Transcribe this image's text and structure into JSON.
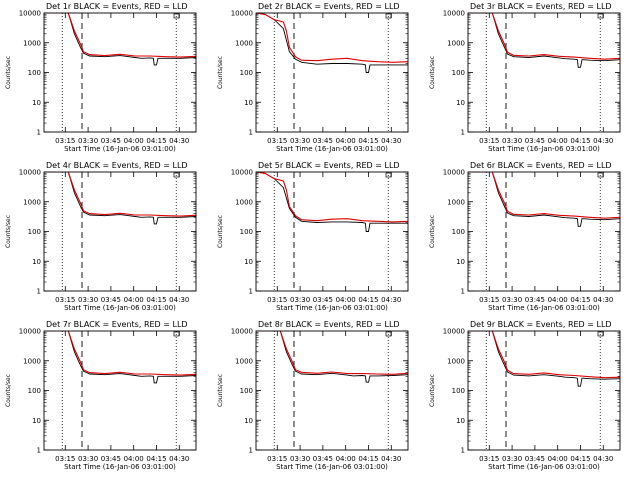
{
  "figure": {
    "shared_xlabel": "Start Time (16-Jan-06 03:01:00)",
    "shared_ylabel": "Counts/sec",
    "x_tick_labels": [
      "03:15",
      "03:30",
      "03:45",
      "04:00",
      "04:15",
      "04:30"
    ],
    "y_tick_labels": [
      "1",
      "10",
      "100",
      "1000",
      "10000"
    ],
    "colors": {
      "events": "#000000",
      "lld": "#e00000",
      "axes": "#000000"
    }
  },
  "chart_data": [
    {
      "type": "line",
      "title": "Det 1r BLACK = Events, RED = LLD",
      "x_unit": "minutes since 03:01",
      "xlim": [
        0,
        100
      ],
      "ylim": [
        1,
        10000
      ],
      "y_scale": "log",
      "x_ticks": [
        14,
        29,
        44,
        59,
        74,
        89
      ],
      "x_tick_labels": [
        "03:15",
        "03:30",
        "03:45",
        "04:00",
        "04:15",
        "04:30"
      ],
      "vlines_dotted": [
        12,
        87
      ],
      "vlines_dashed": [
        25
      ],
      "series": [
        {
          "color": "#000000",
          "x": [
            0,
            10,
            16,
            20,
            24,
            26,
            30,
            40,
            50,
            60,
            64,
            70,
            72,
            72.5,
            74,
            75,
            76,
            80,
            90,
            100
          ],
          "y": [
            10000,
            10000,
            10000,
            2000,
            700,
            450,
            360,
            340,
            370,
            320,
            300,
            310,
            300,
            180,
            180,
            300,
            300,
            300,
            300,
            320
          ]
        },
        {
          "color": "#e00000",
          "x": [
            0,
            10,
            16,
            20,
            24,
            26,
            30,
            40,
            50,
            60,
            70,
            80,
            90,
            100
          ],
          "y": [
            10000,
            10000,
            10000,
            2500,
            900,
            500,
            400,
            370,
            410,
            360,
            360,
            340,
            330,
            350
          ]
        }
      ]
    },
    {
      "type": "line",
      "title": "Det 2r BLACK = Events, RED = LLD",
      "x_unit": "minutes since 03:01",
      "xlim": [
        0,
        100
      ],
      "ylim": [
        1,
        10000
      ],
      "y_scale": "log",
      "x_ticks": [
        14,
        29,
        44,
        59,
        74,
        89
      ],
      "x_tick_labels": [
        "03:15",
        "03:30",
        "03:45",
        "04:00",
        "04:15",
        "04:30"
      ],
      "vlines_dotted": [
        12,
        87
      ],
      "vlines_dashed": [
        25
      ],
      "series": [
        {
          "color": "#000000",
          "x": [
            0,
            6,
            12,
            18,
            22,
            26,
            30,
            40,
            50,
            60,
            70,
            72,
            72.5,
            74,
            75,
            76,
            80,
            90,
            100
          ],
          "y": [
            10000,
            9000,
            6000,
            3000,
            500,
            280,
            220,
            190,
            200,
            200,
            190,
            180,
            100,
            100,
            180,
            180,
            180,
            180,
            180
          ]
        },
        {
          "color": "#e00000",
          "x": [
            0,
            6,
            12,
            18,
            20,
            22,
            26,
            30,
            40,
            50,
            60,
            70,
            80,
            90,
            100
          ],
          "y": [
            10000,
            9000,
            6000,
            5000,
            2500,
            700,
            340,
            260,
            250,
            280,
            300,
            250,
            230,
            220,
            230
          ]
        }
      ]
    },
    {
      "type": "line",
      "title": "Det 3r BLACK = Events, RED = LLD",
      "x_unit": "minutes since 03:01",
      "xlim": [
        0,
        100
      ],
      "ylim": [
        1,
        10000
      ],
      "y_scale": "log",
      "x_ticks": [
        14,
        29,
        44,
        59,
        74,
        89
      ],
      "x_tick_labels": [
        "03:15",
        "03:30",
        "03:45",
        "04:00",
        "04:15",
        "04:30"
      ],
      "vlines_dotted": [
        12,
        87
      ],
      "vlines_dashed": [
        25
      ],
      "series": [
        {
          "color": "#000000",
          "x": [
            0,
            10,
            16,
            20,
            24,
            26,
            30,
            40,
            50,
            60,
            64,
            70,
            72,
            72.5,
            74,
            75,
            76,
            80,
            90,
            100
          ],
          "y": [
            10000,
            10000,
            10000,
            2000,
            700,
            420,
            340,
            320,
            360,
            310,
            290,
            280,
            270,
            150,
            150,
            270,
            270,
            260,
            250,
            270
          ]
        },
        {
          "color": "#e00000",
          "x": [
            0,
            10,
            16,
            20,
            24,
            26,
            30,
            40,
            50,
            60,
            70,
            80,
            90,
            100
          ],
          "y": [
            10000,
            10000,
            10000,
            2500,
            900,
            480,
            380,
            360,
            400,
            350,
            330,
            300,
            280,
            300
          ]
        }
      ]
    },
    {
      "type": "line",
      "title": "Det 4r BLACK = Events, RED = LLD",
      "x_unit": "minutes since 03:01",
      "xlim": [
        0,
        100
      ],
      "ylim": [
        1,
        10000
      ],
      "y_scale": "log",
      "x_ticks": [
        14,
        29,
        44,
        59,
        74,
        89
      ],
      "x_tick_labels": [
        "03:15",
        "03:30",
        "03:45",
        "04:00",
        "04:15",
        "04:30"
      ],
      "vlines_dotted": [
        12,
        87
      ],
      "vlines_dashed": [
        25
      ],
      "series": [
        {
          "color": "#000000",
          "x": [
            0,
            10,
            16,
            20,
            24,
            26,
            30,
            40,
            50,
            60,
            64,
            70,
            72,
            72.5,
            74,
            75,
            76,
            80,
            90,
            100
          ],
          "y": [
            10000,
            10000,
            10000,
            2000,
            700,
            450,
            360,
            340,
            370,
            320,
            300,
            310,
            300,
            180,
            180,
            300,
            300,
            300,
            300,
            320
          ]
        },
        {
          "color": "#e00000",
          "x": [
            0,
            10,
            16,
            20,
            24,
            26,
            30,
            40,
            50,
            60,
            70,
            80,
            90,
            100
          ],
          "y": [
            10000,
            10000,
            10000,
            2500,
            900,
            500,
            400,
            370,
            410,
            360,
            360,
            340,
            330,
            350
          ]
        }
      ]
    },
    {
      "type": "line",
      "title": "Det 5r BLACK = Events, RED = LLD",
      "x_unit": "minutes since 03:01",
      "xlim": [
        0,
        100
      ],
      "ylim": [
        1,
        10000
      ],
      "y_scale": "log",
      "x_ticks": [
        14,
        29,
        44,
        59,
        74,
        89
      ],
      "x_tick_labels": [
        "03:15",
        "03:30",
        "03:45",
        "04:00",
        "04:15",
        "04:30"
      ],
      "vlines_dotted": [
        12,
        87
      ],
      "vlines_dashed": [
        25
      ],
      "series": [
        {
          "color": "#000000",
          "x": [
            0,
            6,
            12,
            18,
            22,
            26,
            30,
            40,
            50,
            60,
            70,
            72,
            72.5,
            74,
            75,
            76,
            80,
            90,
            100
          ],
          "y": [
            10000,
            9000,
            6000,
            3000,
            600,
            300,
            220,
            200,
            210,
            210,
            200,
            190,
            100,
            100,
            190,
            190,
            190,
            190,
            190
          ]
        },
        {
          "color": "#e00000",
          "x": [
            0,
            6,
            12,
            18,
            20,
            22,
            26,
            30,
            40,
            50,
            60,
            70,
            80,
            90,
            100
          ],
          "y": [
            10000,
            9000,
            6000,
            5000,
            2500,
            700,
            340,
            250,
            230,
            260,
            270,
            230,
            220,
            210,
            220
          ]
        }
      ]
    },
    {
      "type": "line",
      "title": "Det 6r BLACK = Events, RED = LLD",
      "x_unit": "minutes since 03:01",
      "xlim": [
        0,
        100
      ],
      "ylim": [
        1,
        10000
      ],
      "y_scale": "log",
      "x_ticks": [
        14,
        29,
        44,
        59,
        74,
        89
      ],
      "x_tick_labels": [
        "03:15",
        "03:30",
        "03:45",
        "04:00",
        "04:15",
        "04:30"
      ],
      "vlines_dotted": [
        12,
        87
      ],
      "vlines_dashed": [
        25
      ],
      "series": [
        {
          "color": "#000000",
          "x": [
            0,
            10,
            16,
            20,
            24,
            26,
            30,
            40,
            50,
            60,
            64,
            70,
            72,
            72.5,
            74,
            75,
            76,
            80,
            90,
            100
          ],
          "y": [
            10000,
            10000,
            10000,
            2000,
            700,
            420,
            340,
            320,
            360,
            310,
            290,
            280,
            270,
            150,
            150,
            270,
            270,
            260,
            250,
            270
          ]
        },
        {
          "color": "#e00000",
          "x": [
            0,
            10,
            16,
            20,
            24,
            26,
            30,
            40,
            50,
            60,
            70,
            80,
            90,
            100
          ],
          "y": [
            10000,
            10000,
            10000,
            2500,
            900,
            480,
            380,
            360,
            400,
            350,
            330,
            300,
            280,
            300
          ]
        }
      ]
    },
    {
      "type": "line",
      "title": "Det 7r BLACK = Events, RED = LLD",
      "x_unit": "minutes since 03:01",
      "xlim": [
        0,
        100
      ],
      "ylim": [
        1,
        10000
      ],
      "y_scale": "log",
      "x_ticks": [
        14,
        29,
        44,
        59,
        74,
        89
      ],
      "x_tick_labels": [
        "03:15",
        "03:30",
        "03:45",
        "04:00",
        "04:15",
        "04:30"
      ],
      "vlines_dotted": [
        12,
        87
      ],
      "vlines_dashed": [
        25
      ],
      "series": [
        {
          "color": "#000000",
          "x": [
            0,
            10,
            16,
            20,
            24,
            26,
            30,
            40,
            50,
            60,
            64,
            70,
            72,
            72.5,
            74,
            75,
            76,
            80,
            90,
            100
          ],
          "y": [
            10000,
            10000,
            10000,
            2000,
            700,
            450,
            360,
            340,
            370,
            320,
            300,
            310,
            300,
            180,
            180,
            300,
            300,
            300,
            300,
            320
          ]
        },
        {
          "color": "#e00000",
          "x": [
            0,
            10,
            16,
            20,
            24,
            26,
            30,
            40,
            50,
            60,
            70,
            80,
            90,
            100
          ],
          "y": [
            10000,
            10000,
            10000,
            2500,
            900,
            500,
            400,
            370,
            410,
            360,
            360,
            340,
            330,
            350
          ]
        }
      ]
    },
    {
      "type": "line",
      "title": "Det 8r BLACK = Events, RED = LLD",
      "x_unit": "minutes since 03:01",
      "xlim": [
        0,
        100
      ],
      "ylim": [
        1,
        10000
      ],
      "y_scale": "log",
      "x_ticks": [
        14,
        29,
        44,
        59,
        74,
        89
      ],
      "x_tick_labels": [
        "03:15",
        "03:30",
        "03:45",
        "04:00",
        "04:15",
        "04:30"
      ],
      "vlines_dotted": [
        12,
        87
      ],
      "vlines_dashed": [
        25
      ],
      "series": [
        {
          "color": "#000000",
          "x": [
            0,
            10,
            16,
            20,
            24,
            26,
            30,
            40,
            50,
            60,
            64,
            70,
            72,
            72.5,
            74,
            75,
            76,
            80,
            90,
            100
          ],
          "y": [
            10000,
            10000,
            10000,
            2000,
            700,
            450,
            360,
            340,
            380,
            330,
            310,
            320,
            310,
            190,
            190,
            310,
            310,
            310,
            320,
            340
          ]
        },
        {
          "color": "#e00000",
          "x": [
            0,
            10,
            16,
            20,
            24,
            26,
            30,
            40,
            50,
            60,
            70,
            80,
            90,
            100
          ],
          "y": [
            10000,
            10000,
            10000,
            2500,
            900,
            500,
            410,
            380,
            420,
            370,
            370,
            360,
            350,
            380
          ]
        }
      ]
    },
    {
      "type": "line",
      "title": "Det 9r BLACK = Events, RED = LLD",
      "x_unit": "minutes since 03:01",
      "xlim": [
        0,
        100
      ],
      "ylim": [
        1,
        10000
      ],
      "y_scale": "log",
      "x_ticks": [
        14,
        29,
        44,
        59,
        74,
        89
      ],
      "x_tick_labels": [
        "03:15",
        "03:30",
        "03:45",
        "04:00",
        "04:15",
        "04:30"
      ],
      "vlines_dotted": [
        12,
        87
      ],
      "vlines_dashed": [
        25
      ],
      "series": [
        {
          "color": "#000000",
          "x": [
            0,
            10,
            16,
            20,
            24,
            26,
            30,
            40,
            50,
            60,
            64,
            70,
            72,
            72.5,
            74,
            75,
            76,
            80,
            90,
            100
          ],
          "y": [
            10000,
            10000,
            10000,
            2000,
            700,
            420,
            330,
            310,
            340,
            300,
            280,
            270,
            260,
            140,
            140,
            260,
            260,
            250,
            240,
            250
          ]
        },
        {
          "color": "#e00000",
          "x": [
            0,
            10,
            16,
            20,
            24,
            26,
            30,
            40,
            50,
            60,
            70,
            80,
            90,
            100
          ],
          "y": [
            10000,
            10000,
            10000,
            2500,
            900,
            480,
            370,
            350,
            390,
            340,
            320,
            290,
            270,
            280
          ]
        }
      ]
    }
  ]
}
